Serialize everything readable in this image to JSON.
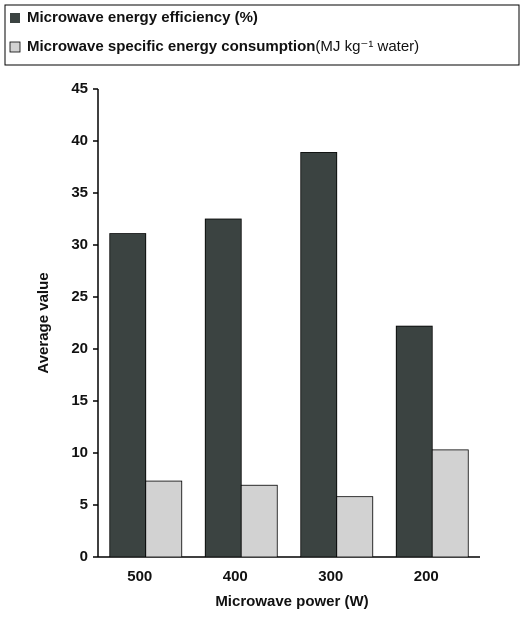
{
  "chart_data": {
    "type": "bar",
    "xlabel": "Microwave power (W)",
    "ylabel": "Average value",
    "categories": [
      "500",
      "400",
      "300",
      "200"
    ],
    "series": [
      {
        "name": "Microwave energy efficiency (%)",
        "color": "#3b4341",
        "values": [
          31.1,
          32.5,
          38.9,
          22.2
        ]
      },
      {
        "name": "Microwave specific energy consumption(MJ kg⁻¹ water)",
        "color": "#d2d2d2",
        "values": [
          7.3,
          6.9,
          5.8,
          10.3
        ]
      }
    ],
    "ylim": [
      0,
      45
    ],
    "yticks": [
      0,
      5,
      10,
      15,
      20,
      25,
      30,
      35,
      40,
      45
    ],
    "grid": false
  }
}
